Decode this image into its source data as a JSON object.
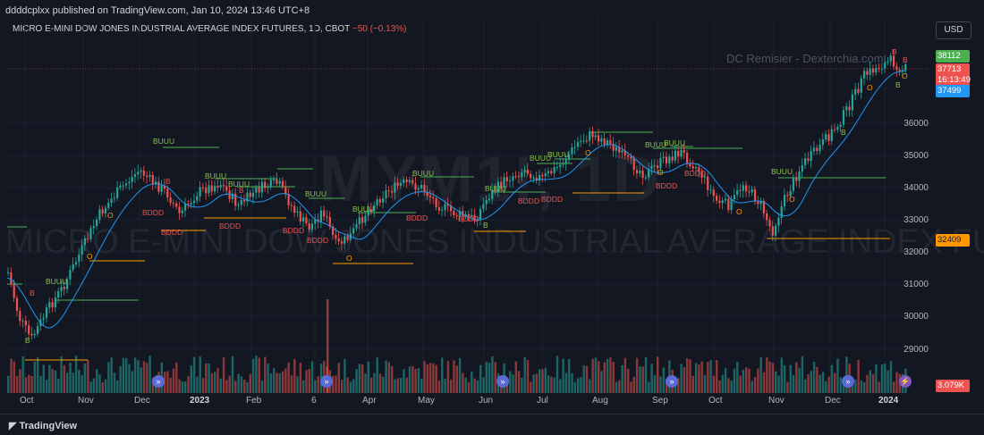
{
  "header": {
    "publish_line": "ddddcplxx published on TradingView.com, Jan 10, 2024 13:46 UTC+8",
    "symbol_line": "MICRO E-MINI DOW JONES INDUSTRIAL AVERAGE INDEX FUTURES, 1D, CBOT",
    "change": "−50 (−0.13%)",
    "currency": "USD"
  },
  "watermarks": {
    "ticker": "MYM1!, 1D",
    "name": "MICRO E-MINI DOW JONES INDUSTRIAL AVERAGE INDEX FUTURES",
    "author": "DC Remisier - Dexterchia.com"
  },
  "price_axis": {
    "labels": [
      "36000",
      "35000",
      "34000",
      "33000",
      "32000",
      "31000",
      "30000",
      "29000"
    ],
    "tags": {
      "high": "38112",
      "last": "37713",
      "countdown": "16:13:49",
      "ma": "37499",
      "support": "32409",
      "volume": "3.079K"
    }
  },
  "time_axis": {
    "labels": [
      "Oct",
      "Nov",
      "Dec",
      "2023",
      "Feb",
      "6",
      "Apr",
      "May",
      "Jun",
      "Jul",
      "Aug",
      "Sep",
      "Oct",
      "Nov",
      "Dec",
      "2024"
    ]
  },
  "markers": {
    "buuu": "BUUU",
    "bddd": "BDDD",
    "b": "B",
    "o": "O"
  },
  "footer": {
    "brand": "TradingView"
  },
  "colors": {
    "bg": "#131722",
    "up": "#26a69a",
    "down": "#ef5350",
    "ma": "#2196f3",
    "buy_line": "#4caf50",
    "support_line": "#ff9800"
  }
}
